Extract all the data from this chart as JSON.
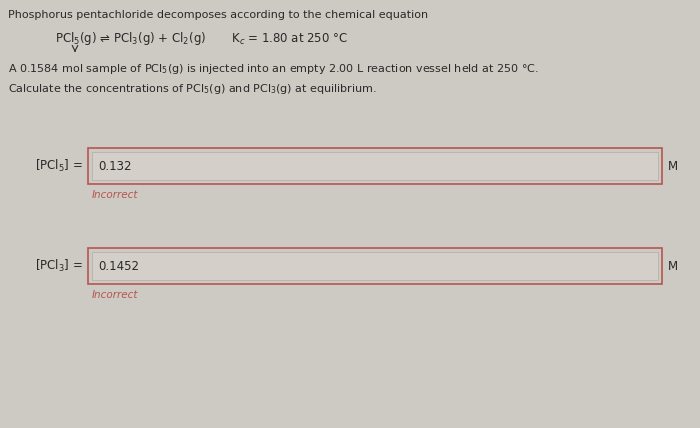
{
  "bg_color": "#cdc9c3",
  "title_line1": "Phosphorus pentachloride decomposes according to the chemical equation",
  "equation_pcl5": "PCl",
  "equation_rest": "(g) ⇌ PCl",
  "problem_line": "A 0.1584 mol sample of PCl$_5$(g) is injected into an empty 2.00 L reaction vessel held at 250 °C.",
  "question_line": "Calculate the concentrations of PCl$_5$(g) and PCl$_3$(g) at equilibrium.",
  "label1": "[PCl$_5$] =",
  "value1": "0.132",
  "label2": "[PCl$_3$] =",
  "value2": "0.1452",
  "incorrect_text": "Incorrect",
  "unit": "M",
  "box_border_color": "#b85450",
  "inner_box_fill": "#d4cfc9",
  "incorrect_color": "#b85450",
  "text_color": "#2a2a2a",
  "font_size_main": 8.0,
  "font_size_equation": 8.5,
  "font_size_label": 8.5,
  "font_size_value": 8.5,
  "font_size_incorrect": 7.5
}
